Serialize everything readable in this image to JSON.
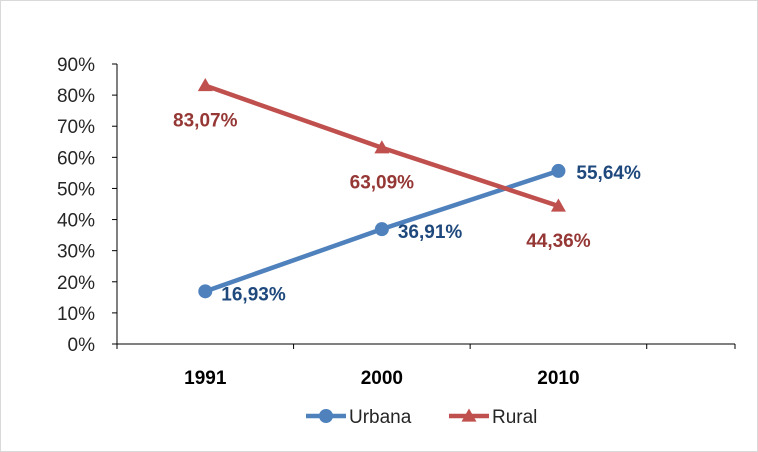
{
  "chart_data": {
    "type": "line",
    "categories": [
      "1991",
      "2000",
      "2010"
    ],
    "ylim": [
      0,
      90
    ],
    "yticks": [
      "0%",
      "10%",
      "20%",
      "30%",
      "40%",
      "50%",
      "60%",
      "70%",
      "80%",
      "90%"
    ],
    "grid": false,
    "legend_position": "bottom",
    "series": [
      {
        "name": "Urbana",
        "values": [
          16.93,
          36.91,
          55.64
        ],
        "labels": [
          "16,93%",
          "36,91%",
          "55,64%"
        ],
        "color": "#4f81bd",
        "label_color": "#1f497d",
        "marker": "circle"
      },
      {
        "name": "Rural",
        "values": [
          83.07,
          63.09,
          44.36
        ],
        "labels": [
          "83,07%",
          "63,09%",
          "44,36%"
        ],
        "color": "#c0504d",
        "label_color": "#953735",
        "marker": "triangle"
      }
    ]
  }
}
